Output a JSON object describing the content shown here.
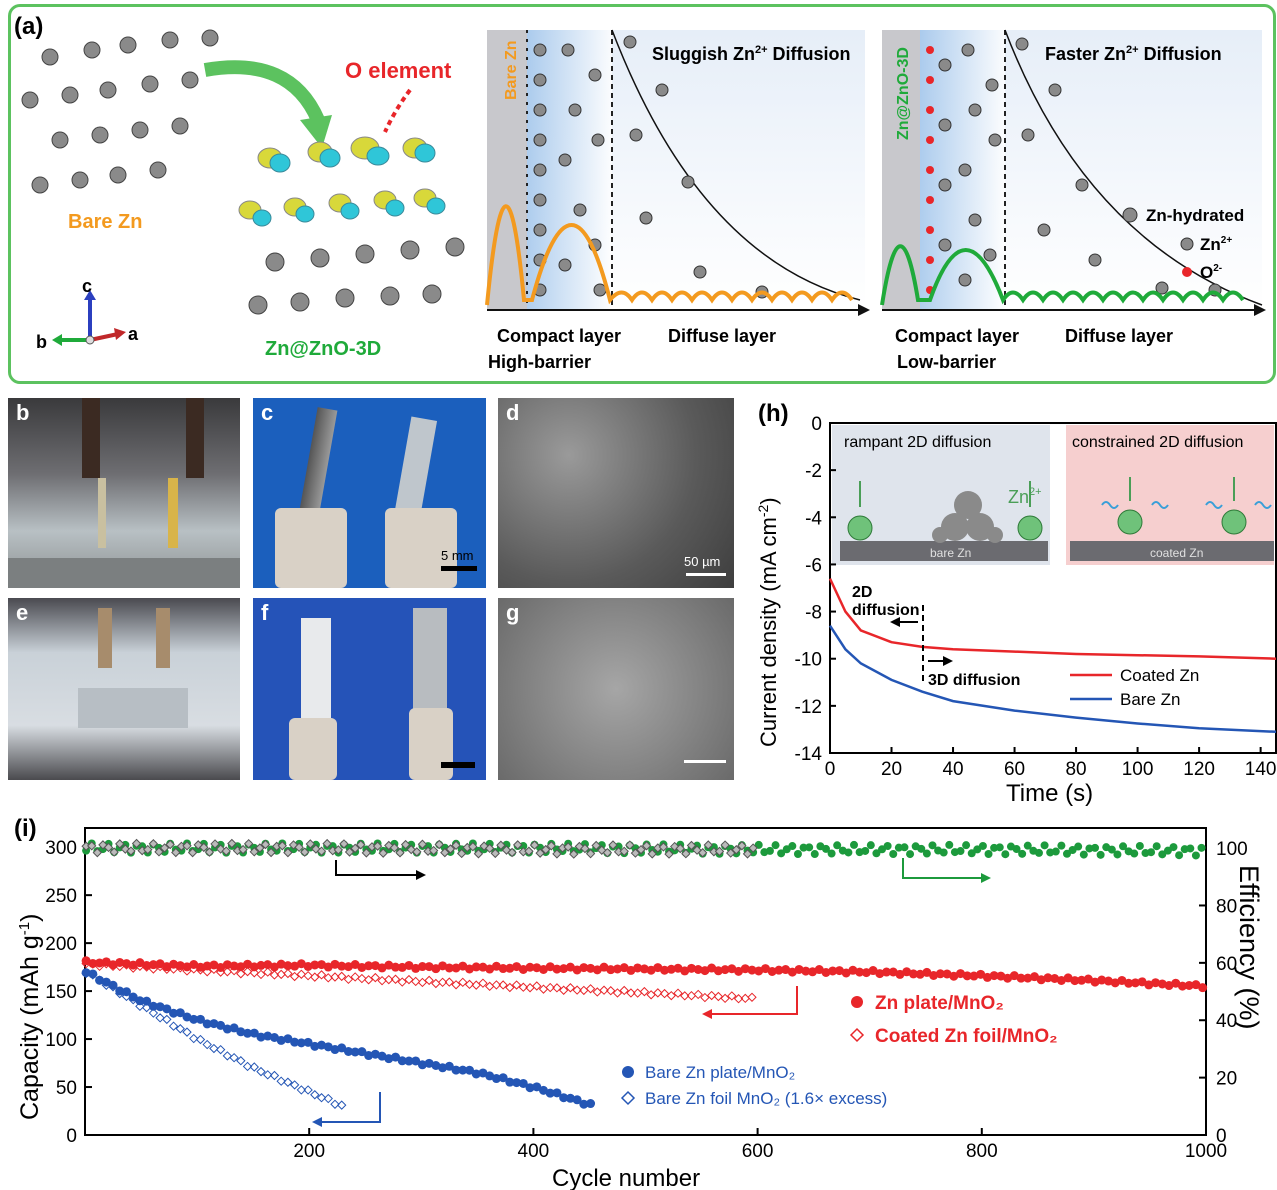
{
  "panel_a": {
    "label": "(a)",
    "o_element": "O element",
    "bare_zn": "Bare Zn",
    "zn_zno": "Zn@ZnO-3D",
    "axes": {
      "c": "c",
      "b": "b",
      "a": "a"
    },
    "left_box": {
      "side_label": "Bare Zn",
      "title": "Sluggish Zn",
      "title_sup": "2+",
      "title_suffix": " Diffusion",
      "compact": "Compact layer",
      "barrier": "High-barrier",
      "diffuse": "Diffuse layer"
    },
    "right_box": {
      "side_label": "Zn@ZnO-3D",
      "title": "Faster Zn",
      "title_sup": "2+",
      "title_suffix": " Diffusion",
      "compact": "Compact layer",
      "barrier": "Low-barrier",
      "diffuse": "Diffuse layer",
      "legend_hydrated": "Zn-hydrated",
      "legend_zn": "Zn",
      "legend_zn_sup": "2+",
      "legend_o": "O",
      "legend_o_sup": "2-"
    },
    "colors": {
      "orange": "#f39a1f",
      "green": "#1faa3a",
      "border": "#5cc25f"
    }
  },
  "photos": {
    "b": "b",
    "c": "c",
    "d": "d",
    "e": "e",
    "f": "f",
    "g": "g",
    "scale_c": "5 mm",
    "scale_d": "50 µm"
  },
  "panel_h": {
    "label": "(h)",
    "inset_left": "rampant 2D diffusion",
    "inset_left_sub": "bare Zn",
    "inset_left_ion": "Zn",
    "inset_left_ion_sup": "2+",
    "inset_right": "constrained 2D diffusion",
    "inset_right_sub": "coated Zn",
    "annot_2d": "2D",
    "annot_2d_b": "diffusion",
    "annot_3d": "3D diffusion",
    "ylabel": "Current density (mA cm",
    "ylabel_sup": "-2",
    "ylabel_end": ")",
    "xlabel": "Time (s)",
    "legend": [
      "Coated Zn",
      "Bare Zn"
    ]
  },
  "panel_i": {
    "label": "(i)",
    "ylabel": "Capacity (mAh g",
    "ylabel_sup": "-1",
    "ylabel_end": ")",
    "y2label": "Efficiency (%)",
    "xlabel": "Cycle number",
    "legend": [
      "Zn plate/MnO₂",
      "Coated Zn foil/MnO₂",
      "Bare Zn plate/MnO₂",
      "Bare Zn foil MnO₂ (1.6× excess)"
    ]
  },
  "chart_data": [
    {
      "type": "line",
      "title": "",
      "xlabel": "Time (s)",
      "ylabel": "Current density (mA cm-2)",
      "xlim": [
        0,
        145
      ],
      "ylim": [
        -14,
        0
      ],
      "xticks": [
        0,
        20,
        40,
        60,
        80,
        100,
        120,
        140
      ],
      "yticks": [
        0,
        -2,
        -4,
        -6,
        -8,
        -10,
        -12,
        -14
      ],
      "x": [
        0,
        5,
        10,
        20,
        30,
        40,
        60,
        80,
        100,
        120,
        145
      ],
      "series": [
        {
          "name": "Coated Zn",
          "color": "#e8262a",
          "values": [
            -6.6,
            -8.0,
            -8.8,
            -9.3,
            -9.5,
            -9.6,
            -9.7,
            -9.8,
            -9.85,
            -9.9,
            -10.0
          ]
        },
        {
          "name": "Bare Zn",
          "color": "#2456b5",
          "values": [
            -8.6,
            -9.6,
            -10.2,
            -10.9,
            -11.4,
            -11.8,
            -12.2,
            -12.5,
            -12.75,
            -12.95,
            -13.1
          ]
        }
      ]
    },
    {
      "type": "scatter",
      "title": "",
      "xlabel": "Cycle number",
      "ylabel": "Capacity (mAh g-1)",
      "y2label": "Efficiency (%)",
      "xlim": [
        0,
        1000
      ],
      "ylim": [
        0,
        320
      ],
      "y2lim": [
        0,
        107
      ],
      "xticks": [
        200,
        400,
        600,
        800,
        1000
      ],
      "yticks": [
        0,
        50,
        100,
        150,
        200,
        250,
        300
      ],
      "y2ticks": [
        0,
        20,
        40,
        60,
        80,
        100
      ],
      "series": [
        {
          "name": "Zn plate/MnO₂",
          "color": "#e8262a",
          "marker": "filled-circle",
          "x": [
            1,
            100,
            200,
            300,
            400,
            500,
            600,
            700,
            800,
            900,
            1000
          ],
          "values": [
            180,
            176,
            177,
            175,
            174,
            173,
            172,
            170,
            166,
            161,
            155
          ]
        },
        {
          "name": "Coated Zn foil/MnO₂",
          "color": "#e8262a",
          "marker": "open-diamond",
          "x": [
            1,
            100,
            200,
            300,
            400,
            500,
            600
          ],
          "values": [
            178,
            172,
            166,
            160,
            154,
            148,
            142
          ]
        },
        {
          "name": "Bare Zn plate/MnO₂",
          "color": "#2456b5",
          "marker": "filled-circle",
          "x": [
            1,
            50,
            100,
            150,
            200,
            250,
            300,
            350,
            400,
            455
          ],
          "values": [
            170,
            140,
            120,
            105,
            95,
            85,
            75,
            65,
            50,
            30
          ]
        },
        {
          "name": "Bare Zn foil MnO₂ (1.6× excess)",
          "color": "#2456b5",
          "marker": "open-diamond",
          "x": [
            1,
            50,
            100,
            150,
            200,
            230
          ],
          "values": [
            170,
            135,
            100,
            70,
            45,
            30
          ]
        },
        {
          "name": "Efficiency (Zn plate)",
          "color": "#1c9a3c",
          "axis": "right",
          "x": [
            1,
            200,
            400,
            600,
            800,
            1000
          ],
          "values": [
            100,
            100,
            100,
            99.5,
            99.5,
            99
          ]
        },
        {
          "name": "Efficiency (Coated Zn foil)",
          "color": "#777777",
          "axis": "right",
          "x": [
            1,
            200,
            400,
            600
          ],
          "values": [
            100,
            100,
            99.5,
            99.5
          ]
        }
      ]
    }
  ]
}
